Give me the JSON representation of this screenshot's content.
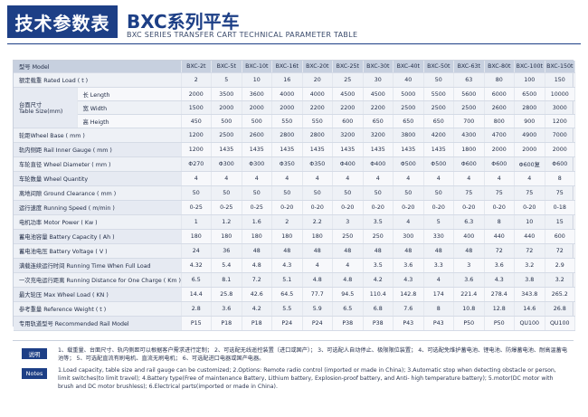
{
  "header": {
    "title_cn": "技术参数表",
    "model_cn": "BXC系列平车",
    "subtitle_en": "BXC SERIES TRANSFER CART TECHNICAL PARAMETER TABLE"
  },
  "table": {
    "model_label": "型号 Model",
    "models": [
      "BXC-2t",
      "BXC-5t",
      "BXC-10t",
      "BXC-16t",
      "BXC-20t",
      "BXC-25t",
      "BXC-30t",
      "BXC-40t",
      "BXC-50t",
      "BXC-63t",
      "BXC-80t",
      "BXC-100t",
      "BXC-150t"
    ],
    "rated_load": {
      "label": "额定载重 Rated Load ( t )",
      "values": [
        "2",
        "5",
        "10",
        "16",
        "20",
        "25",
        "30",
        "40",
        "50",
        "63",
        "80",
        "100",
        "150"
      ]
    },
    "table_size": {
      "label_cn": "台面尺寸",
      "label_en": "Table Size(mm)",
      "rows": [
        {
          "label": "长 Length",
          "values": [
            "2000",
            "3500",
            "3600",
            "4000",
            "4000",
            "4500",
            "4500",
            "5000",
            "5500",
            "5600",
            "6000",
            "6500",
            "10000"
          ]
        },
        {
          "label": "宽 Width",
          "values": [
            "1500",
            "2000",
            "2000",
            "2000",
            "2200",
            "2200",
            "2200",
            "2500",
            "2500",
            "2500",
            "2600",
            "2800",
            "3000"
          ]
        },
        {
          "label": "高 Heigth",
          "values": [
            "450",
            "500",
            "500",
            "550",
            "550",
            "600",
            "650",
            "650",
            "650",
            "700",
            "800",
            "900",
            "1200"
          ]
        }
      ]
    },
    "rows": [
      {
        "label": "轮距Wheel Base ( mm )",
        "values": [
          "1200",
          "2500",
          "2600",
          "2800",
          "2800",
          "3200",
          "3200",
          "3800",
          "4200",
          "4300",
          "4700",
          "4900",
          "7000"
        ]
      },
      {
        "label": "轨内侧距 Rail Inner Gauge ( mm )",
        "values": [
          "1200",
          "1435",
          "1435",
          "1435",
          "1435",
          "1435",
          "1435",
          "1435",
          "1435",
          "1800",
          "2000",
          "2000",
          "2000"
        ]
      },
      {
        "label": "车轮直径 Wheel Diameter ( mm )",
        "values": [
          "Φ270",
          "Φ300",
          "Φ300",
          "Φ350",
          "Φ350",
          "Φ400",
          "Φ400",
          "Φ500",
          "Φ500",
          "Φ600",
          "Φ600",
          "Φ600复",
          "Φ600"
        ]
      },
      {
        "label": "车轮数量 Wheel Quantity",
        "values": [
          "4",
          "4",
          "4",
          "4",
          "4",
          "4",
          "4",
          "4",
          "4",
          "4",
          "4",
          "4",
          "8"
        ]
      },
      {
        "label": "离地间隙 Ground Clearance ( mm )",
        "values": [
          "50",
          "50",
          "50",
          "50",
          "50",
          "50",
          "50",
          "50",
          "50",
          "75",
          "75",
          "75",
          "75"
        ]
      },
      {
        "label": "运行速度 Running Speed ( m/min )",
        "values": [
          "0-25",
          "0-25",
          "0-25",
          "0-20",
          "0-20",
          "0-20",
          "0-20",
          "0-20",
          "0-20",
          "0-20",
          "0-20",
          "0-20",
          "0-18"
        ]
      },
      {
        "label": "电机功率 Motor Power ( Kw )",
        "values": [
          "1",
          "1.2",
          "1.6",
          "2",
          "2.2",
          "3",
          "3.5",
          "4",
          "5",
          "6.3",
          "8",
          "10",
          "15"
        ]
      },
      {
        "label": "蓄电池容量 Battery Capacity ( Ah )",
        "values": [
          "180",
          "180",
          "180",
          "180",
          "180",
          "250",
          "250",
          "300",
          "330",
          "400",
          "440",
          "440",
          "600"
        ]
      },
      {
        "label": "蓄电池电压 Battery Voltage ( V )",
        "values": [
          "24",
          "36",
          "48",
          "48",
          "48",
          "48",
          "48",
          "48",
          "48",
          "48",
          "72",
          "72",
          "72"
        ]
      },
      {
        "label": "满载连续运行时间 Running Time When Full Load",
        "values": [
          "4.32",
          "5.4",
          "4.8",
          "4.3",
          "4",
          "4",
          "3.5",
          "3.6",
          "3.3",
          "3",
          "3.6",
          "3.2",
          "2.9"
        ]
      },
      {
        "label": "一次充电运行距离 Running Distance for One Charge ( Km )",
        "values": [
          "6.5",
          "8.1",
          "7.2",
          "5.1",
          "4.8",
          "4.8",
          "4.2",
          "4.3",
          "4",
          "3.6",
          "4.3",
          "3.8",
          "3.2"
        ]
      },
      {
        "label": "最大轮压 Max Wheel Load ( KN )",
        "values": [
          "14.4",
          "25.8",
          "42.6",
          "64.5",
          "77.7",
          "94.5",
          "110.4",
          "142.8",
          "174",
          "221.4",
          "278.4",
          "343.8",
          "265.2"
        ]
      },
      {
        "label": "参考重量 Reference Weight ( t )",
        "values": [
          "2.8",
          "3.6",
          "4.2",
          "5.5",
          "5.9",
          "6.5",
          "6.8",
          "7.6",
          "8",
          "10.8",
          "12.8",
          "14.6",
          "26.8"
        ]
      },
      {
        "label": "专用轨道型号 Recommended Rail Model",
        "values": [
          "P15",
          "P18",
          "P18",
          "P24",
          "P24",
          "P38",
          "P38",
          "P43",
          "P43",
          "P50",
          "P50",
          "QU100",
          "QU100"
        ]
      }
    ]
  },
  "notes": {
    "cn_tag": "说明",
    "en_tag": "Notes",
    "cn_text": "1、载重量、台面尺寸、轨内侧距可以根据客户需求进行定制；  2、可选配无线遥控装置（进口或国产）；  3、可选配人自动停止、极限限位装置；  4、可选配免维护蓄电池、锂电池、防爆蓄电池、耐高温蓄电池等；  5、可选配直流有刷电机、直流无刷电机；  6、可选配进口电器或国产电器。",
    "en_text": "1.Load capacity, table size and rail gauge can be customized; 2.Options: Remote radio control (imported or made in China); 3.Automatic stop when detecting obstacle or person, limit switches(to limit travel); 4.Battery type(Free of maintenance Battery, Lithium battery, Explosion-proof battery, and Anti- high temperature battery); 5.motor(DC motor with brush and DC motor brushless); 6.Electrical parts(imported or made in China)."
  }
}
